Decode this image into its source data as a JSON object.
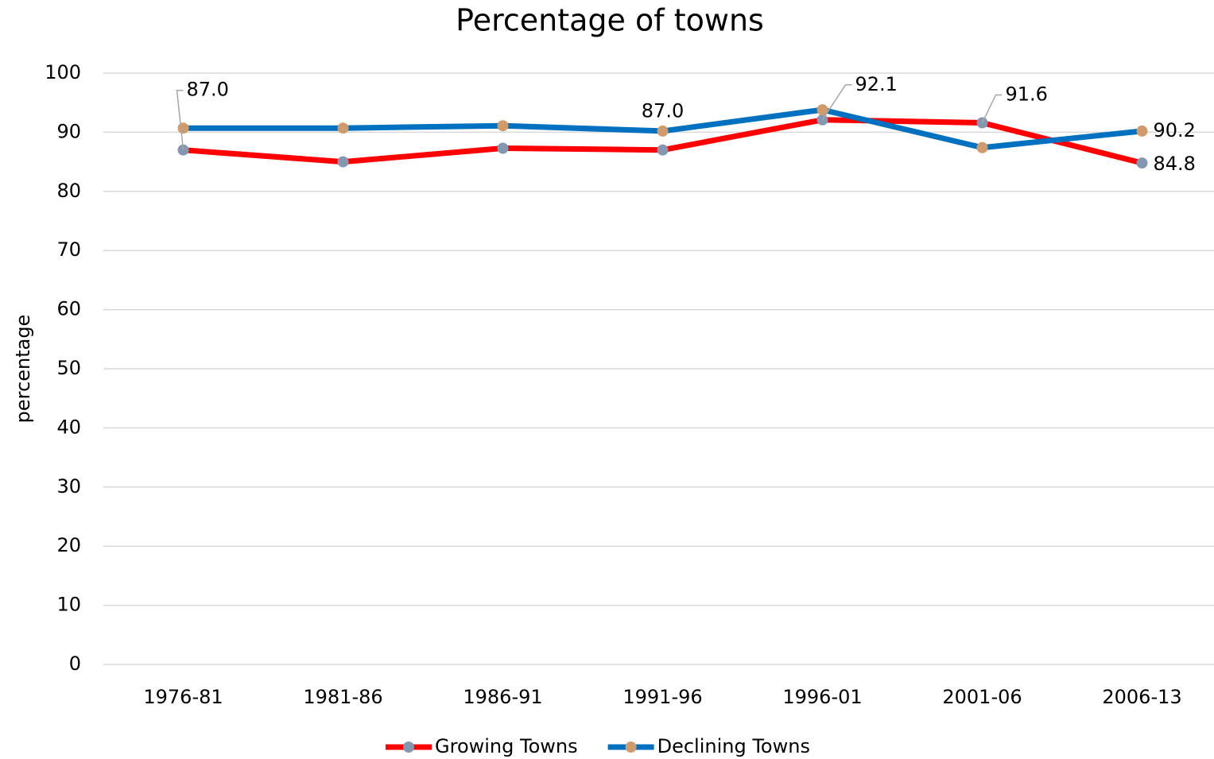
{
  "chart_data": {
    "type": "line",
    "title": "Percentage of towns",
    "y_label": "percentage",
    "categories": [
      "1976-81",
      "1981-86",
      "1986-91",
      "1991-96",
      "1996-01",
      "2001-06",
      "2006-13"
    ],
    "series": [
      {
        "name": "Growing Towns",
        "color": "#ff0000",
        "marker_color": "#8497b0",
        "values": [
          87.0,
          85.0,
          87.3,
          87.0,
          92.1,
          91.6,
          84.8
        ],
        "value_labels": [
          "87.0",
          null,
          null,
          "87.0",
          "92.1",
          "91.6",
          "84.8"
        ]
      },
      {
        "name": "Declining Towns",
        "color": "#0070c0",
        "marker_color": "#d09a6a",
        "values": [
          90.7,
          90.7,
          91.1,
          90.2,
          93.8,
          87.4,
          90.2
        ],
        "value_labels": [
          null,
          null,
          null,
          null,
          null,
          null,
          "90.2"
        ]
      }
    ],
    "ylim": [
      0,
      100
    ],
    "yticks": [
      0,
      10,
      20,
      30,
      40,
      50,
      60,
      70,
      80,
      90,
      100
    ],
    "grid": true
  }
}
